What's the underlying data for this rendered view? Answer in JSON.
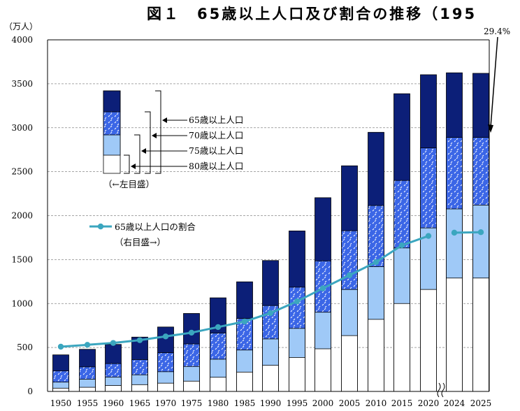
{
  "chart_data": {
    "type": "bar",
    "title": "図１　65歳以上人口及び割合の推移（195",
    "ylabel": "（万人）",
    "ylim": [
      0,
      4000
    ],
    "yticks": [
      0,
      500,
      1000,
      1500,
      2000,
      2500,
      3000,
      3500,
      4000
    ],
    "categories": [
      "1950",
      "1955",
      "1960",
      "1965",
      "1970",
      "1975",
      "1980",
      "1985",
      "1990",
      "1995",
      "2000",
      "2005",
      "2010",
      "2015",
      "2020",
      "2024",
      "2025"
    ],
    "stack_order_note": "",
    "series": [
      {
        "name": "80歳以上人口",
        "values": [
          37,
          47,
          67,
          77,
          94,
          117,
          161,
          220,
          297,
          386,
          485,
          635,
          820,
          1000,
          1160,
          1290,
          1290
        ]
      },
      {
        "name": "75歳以上人口",
        "values": [
          106,
          139,
          163,
          189,
          224,
          284,
          366,
          471,
          597,
          717,
          901,
          1160,
          1419,
          1632,
          1860,
          2076,
          2120
        ]
      },
      {
        "name": "70歳以上人口",
        "values": [
          233,
          279,
          317,
          362,
          440,
          540,
          664,
          830,
          977,
          1186,
          1485,
          1828,
          2115,
          2400,
          2770,
          2890,
          2890
        ]
      },
      {
        "name": "65歳以上人口",
        "values": [
          416,
          479,
          535,
          618,
          733,
          887,
          1065,
          1247,
          1489,
          1826,
          2204,
          2567,
          2948,
          3387,
          3603,
          3625,
          3619
        ]
      }
    ],
    "ratio_series": {
      "name": "65歳以上人口の割合",
      "values": [
        4.9,
        5.3,
        5.7,
        6.3,
        7.1,
        7.9,
        9.1,
        10.3,
        12.1,
        14.6,
        17.4,
        20.2,
        23.0,
        26.6,
        28.6,
        29.3,
        29.4
      ],
      "last_label": "29.4%"
    },
    "legend": {
      "stack_labels": [
        "65歳以上人口",
        "70歳以上人口",
        "75歳以上人口",
        "80歳以上人口"
      ],
      "stack_axis_note": "（←左目盛）",
      "line_label": "65歳以上人口の割合",
      "line_axis_note": "（右目盛→）"
    },
    "axis_break_between": [
      "2020",
      "2024"
    ],
    "colors": {
      "band_65": "#0c1f78",
      "band_70": "#3b66e6",
      "band_75": "#9fc9f7",
      "band_80": "#ffffff",
      "line": "#3ba6bf",
      "grid": "#888888"
    },
    "grid": true
  }
}
